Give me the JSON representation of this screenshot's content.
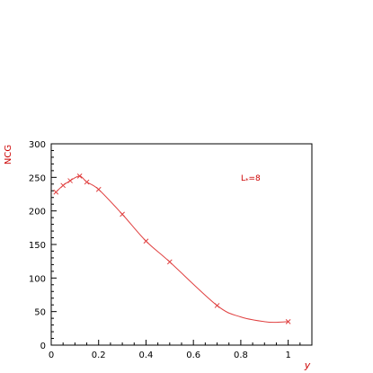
{
  "chart_data": {
    "type": "line",
    "ylabel": "NCG",
    "xlabel": "y",
    "annotation": {
      "main": "L",
      "subscript": "*",
      "suffix": "=8"
    },
    "xlim": [
      0,
      1.1
    ],
    "ylim": [
      0,
      300
    ],
    "xticks": [
      0,
      0.2,
      0.4,
      0.6,
      0.8,
      1
    ],
    "xtick_labels": [
      "0",
      "0.2",
      "0.4",
      "0.6",
      "0.8",
      "1"
    ],
    "yticks": [
      0,
      50,
      100,
      150,
      200,
      250,
      300
    ],
    "ytick_labels": [
      "0",
      "50",
      "100",
      "150",
      "200",
      "250",
      "300"
    ],
    "grid": false,
    "color": "#e04040",
    "series": [
      {
        "marker": "x",
        "x": [
          0.02,
          0.05,
          0.08,
          0.12,
          0.15,
          0.2,
          0.3,
          0.4,
          0.5,
          0.7,
          1.0
        ],
        "y": [
          228,
          238,
          245,
          252,
          243,
          232,
          195,
          155,
          124,
          59,
          35
        ]
      }
    ],
    "curve": {
      "x": [
        0.02,
        0.05,
        0.08,
        0.12,
        0.15,
        0.2,
        0.3,
        0.4,
        0.5,
        0.7,
        0.8,
        0.9,
        0.95,
        1.0
      ],
      "y": [
        228,
        238,
        245,
        252,
        243,
        232,
        195,
        155,
        124,
        59,
        42,
        35,
        34,
        35
      ]
    }
  }
}
